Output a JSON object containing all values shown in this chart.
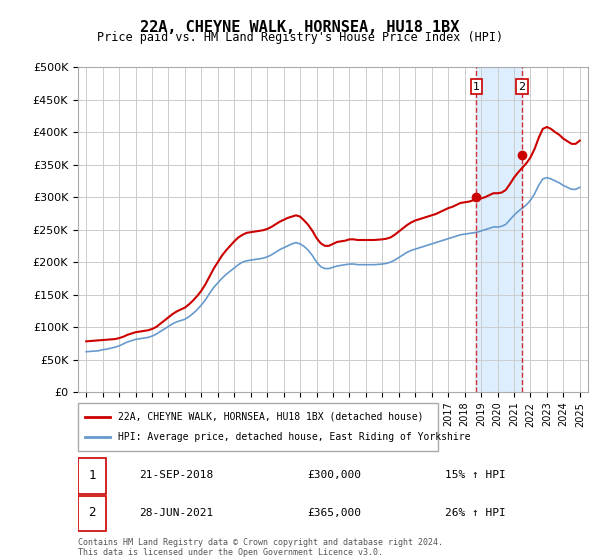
{
  "title": "22A, CHEYNE WALK, HORNSEA, HU18 1BX",
  "subtitle": "Price paid vs. HM Land Registry's House Price Index (HPI)",
  "legend_property": "22A, CHEYNE WALK, HORNSEA, HU18 1BX (detached house)",
  "legend_hpi": "HPI: Average price, detached house, East Riding of Yorkshire",
  "sale1_date": "21-SEP-2018",
  "sale1_price": 300000,
  "sale1_label": "15% ↑ HPI",
  "sale2_date": "28-JUN-2021",
  "sale2_price": 365000,
  "sale2_label": "26% ↑ HPI",
  "footer": "Contains HM Land Registry data © Crown copyright and database right 2024.\nThis data is licensed under the Open Government Licence v3.0.",
  "sale1_x": 2018.72,
  "sale2_x": 2021.49,
  "ylim": [
    0,
    500000
  ],
  "xlim": [
    1994.5,
    2025.5
  ],
  "property_color": "#cc0000",
  "hpi_color": "#6699cc",
  "shade_color": "#ddeeff",
  "vline_color": "#cc0000",
  "marker_color": "#cc0000",
  "hpi_data_x": [
    1995,
    1995.25,
    1995.5,
    1995.75,
    1996,
    1996.25,
    1996.5,
    1996.75,
    1997,
    1997.25,
    1997.5,
    1997.75,
    1998,
    1998.25,
    1998.5,
    1998.75,
    1999,
    1999.25,
    1999.5,
    1999.75,
    2000,
    2000.25,
    2000.5,
    2000.75,
    2001,
    2001.25,
    2001.5,
    2001.75,
    2002,
    2002.25,
    2002.5,
    2002.75,
    2003,
    2003.25,
    2003.5,
    2003.75,
    2004,
    2004.25,
    2004.5,
    2004.75,
    2005,
    2005.25,
    2005.5,
    2005.75,
    2006,
    2006.25,
    2006.5,
    2006.75,
    2007,
    2007.25,
    2007.5,
    2007.75,
    2008,
    2008.25,
    2008.5,
    2008.75,
    2009,
    2009.25,
    2009.5,
    2009.75,
    2010,
    2010.25,
    2010.5,
    2010.75,
    2011,
    2011.25,
    2011.5,
    2011.75,
    2012,
    2012.25,
    2012.5,
    2012.75,
    2013,
    2013.25,
    2013.5,
    2013.75,
    2014,
    2014.25,
    2014.5,
    2014.75,
    2015,
    2015.25,
    2015.5,
    2015.75,
    2016,
    2016.25,
    2016.5,
    2016.75,
    2017,
    2017.25,
    2017.5,
    2017.75,
    2018,
    2018.25,
    2018.5,
    2018.75,
    2019,
    2019.25,
    2019.5,
    2019.75,
    2020,
    2020.25,
    2020.5,
    2020.75,
    2021,
    2021.25,
    2021.5,
    2021.75,
    2022,
    2022.25,
    2022.5,
    2022.75,
    2023,
    2023.25,
    2023.5,
    2023.75,
    2024,
    2024.25,
    2024.5,
    2024.75,
    2025
  ],
  "hpi_data_y": [
    62000,
    62500,
    63000,
    63500,
    65000,
    66000,
    67500,
    69000,
    71000,
    74000,
    77000,
    79000,
    81000,
    82000,
    83000,
    84000,
    86000,
    89000,
    93000,
    97000,
    101000,
    105000,
    108000,
    110000,
    112000,
    116000,
    121000,
    127000,
    134000,
    142000,
    152000,
    161000,
    168000,
    175000,
    181000,
    186000,
    191000,
    196000,
    200000,
    202000,
    203000,
    204000,
    205000,
    206000,
    208000,
    211000,
    215000,
    219000,
    222000,
    225000,
    228000,
    230000,
    228000,
    224000,
    218000,
    210000,
    200000,
    193000,
    190000,
    190000,
    192000,
    194000,
    195000,
    196000,
    197000,
    197000,
    196000,
    196000,
    196000,
    196000,
    196000,
    196500,
    197000,
    198000,
    200000,
    203000,
    207000,
    211000,
    215000,
    218000,
    220000,
    222000,
    224000,
    226000,
    228000,
    230000,
    232000,
    234000,
    236000,
    238000,
    240000,
    242000,
    243000,
    244000,
    245000,
    246000,
    248000,
    250000,
    252000,
    254000,
    254000,
    255000,
    258000,
    265000,
    272000,
    278000,
    283000,
    288000,
    295000,
    305000,
    318000,
    328000,
    330000,
    328000,
    325000,
    322000,
    318000,
    315000,
    312000,
    312000,
    315000
  ],
  "property_data_x": [
    1995,
    1995.25,
    1995.5,
    1995.75,
    1996,
    1996.25,
    1996.5,
    1996.75,
    1997,
    1997.25,
    1997.5,
    1997.75,
    1998,
    1998.25,
    1998.5,
    1998.75,
    1999,
    1999.25,
    1999.5,
    1999.75,
    2000,
    2000.25,
    2000.5,
    2000.75,
    2001,
    2001.25,
    2001.5,
    2001.75,
    2002,
    2002.25,
    2002.5,
    2002.75,
    2003,
    2003.25,
    2003.5,
    2003.75,
    2004,
    2004.25,
    2004.5,
    2004.75,
    2005,
    2005.25,
    2005.5,
    2005.75,
    2006,
    2006.25,
    2006.5,
    2006.75,
    2007,
    2007.25,
    2007.5,
    2007.75,
    2008,
    2008.25,
    2008.5,
    2008.75,
    2009,
    2009.25,
    2009.5,
    2009.75,
    2010,
    2010.25,
    2010.5,
    2010.75,
    2011,
    2011.25,
    2011.5,
    2011.75,
    2012,
    2012.25,
    2012.5,
    2012.75,
    2013,
    2013.25,
    2013.5,
    2013.75,
    2014,
    2014.25,
    2014.5,
    2014.75,
    2015,
    2015.25,
    2015.5,
    2015.75,
    2016,
    2016.25,
    2016.5,
    2016.75,
    2017,
    2017.25,
    2017.5,
    2017.75,
    2018,
    2018.25,
    2018.5,
    2018.75,
    2019,
    2019.25,
    2019.5,
    2019.75,
    2020,
    2020.25,
    2020.5,
    2020.75,
    2021,
    2021.25,
    2021.5,
    2021.75,
    2022,
    2022.25,
    2022.5,
    2022.75,
    2023,
    2023.25,
    2023.5,
    2023.75,
    2024,
    2024.25,
    2024.5,
    2024.75,
    2025
  ],
  "property_data_y": [
    78000,
    78500,
    79000,
    79500,
    80000,
    80500,
    81000,
    81500,
    83000,
    85000,
    88000,
    90000,
    92000,
    93000,
    94000,
    95000,
    97000,
    100000,
    105000,
    110000,
    115000,
    120000,
    124000,
    127000,
    130000,
    135000,
    141000,
    148000,
    156000,
    166000,
    178000,
    190000,
    200000,
    210000,
    218000,
    225000,
    232000,
    238000,
    242000,
    245000,
    246000,
    247000,
    248000,
    249000,
    251000,
    254000,
    258000,
    262000,
    265000,
    268000,
    270000,
    272000,
    270000,
    264000,
    257000,
    248000,
    237000,
    229000,
    225000,
    225000,
    228000,
    231000,
    232000,
    233000,
    235000,
    235000,
    234000,
    234000,
    234000,
    234000,
    234000,
    234500,
    235000,
    236000,
    238000,
    242000,
    247000,
    252000,
    257000,
    261000,
    264000,
    266000,
    268000,
    270000,
    272000,
    274000,
    277000,
    280000,
    283000,
    285000,
    288000,
    291000,
    292000,
    293000,
    295000,
    296000,
    298000,
    300000,
    303000,
    306000,
    306000,
    307000,
    311000,
    320000,
    330000,
    338000,
    345000,
    352000,
    361000,
    374000,
    391000,
    405000,
    408000,
    405000,
    400000,
    396000,
    390000,
    386000,
    382000,
    382000,
    387000
  ]
}
